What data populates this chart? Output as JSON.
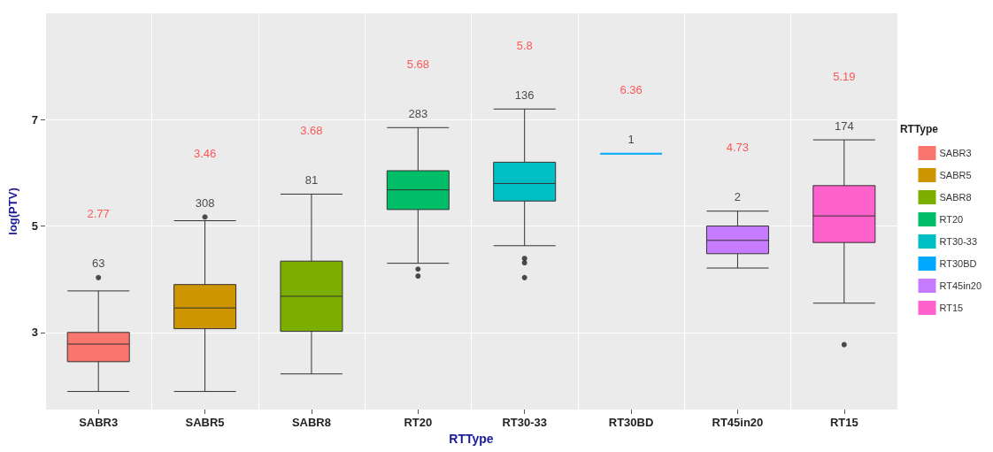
{
  "chart_data": {
    "type": "box",
    "xlabel": "RTType",
    "ylabel": "log(PTV)",
    "legend_title": "RTType",
    "categories": [
      "SABR3",
      "SABR5",
      "SABR8",
      "RT20",
      "RT30-33",
      "RT30BD",
      "RT45in20",
      "RT15"
    ],
    "series": [
      {
        "name": "SABR3",
        "color": "#f8766d",
        "boxes": [
          {
            "low": 1.89,
            "q1": 2.45,
            "median": 2.78,
            "q3": 3.0,
            "high": 3.78,
            "outliers": [
              4.03
            ]
          },
          null,
          null,
          null,
          null,
          null,
          null,
          null
        ]
      },
      {
        "name": "SABR5",
        "color": "#cd9600",
        "boxes": [
          null,
          {
            "low": 1.89,
            "q1": 3.07,
            "median": 3.46,
            "q3": 3.9,
            "high": 5.1,
            "outliers": [
              5.17
            ]
          },
          null,
          null,
          null,
          null,
          null,
          null
        ]
      },
      {
        "name": "SABR8",
        "color": "#7cae00",
        "boxes": [
          null,
          null,
          {
            "low": 2.22,
            "q1": 3.02,
            "median": 3.68,
            "q3": 4.34,
            "high": 5.6
          },
          null,
          null,
          null,
          null,
          null
        ]
      },
      {
        "name": "RT20",
        "color": "#00be67",
        "boxes": [
          null,
          null,
          null,
          {
            "low": 4.3,
            "q1": 5.31,
            "median": 5.68,
            "q3": 6.04,
            "high": 6.85,
            "outliers": [
              4.19,
              4.06
            ]
          },
          null,
          null,
          null,
          null
        ]
      },
      {
        "name": "RT30-33",
        "color": "#00bfc4",
        "boxes": [
          null,
          null,
          null,
          null,
          {
            "low": 4.63,
            "q1": 5.47,
            "median": 5.8,
            "q3": 6.2,
            "high": 7.2,
            "outliers": [
              4.39,
              4.31,
              4.03
            ]
          },
          null,
          null,
          null
        ]
      },
      {
        "name": "RT30BD",
        "color": "#00a9ff",
        "boxes": [
          null,
          null,
          null,
          null,
          null,
          {
            "low": 6.36,
            "q1": 6.36,
            "median": 6.36,
            "q3": 6.36,
            "high": 6.36
          },
          null,
          null
        ]
      },
      {
        "name": "RT45in20",
        "color": "#c77cff",
        "boxes": [
          null,
          null,
          null,
          null,
          null,
          null,
          {
            "low": 4.21,
            "q1": 4.48,
            "median": 4.73,
            "q3": 5.0,
            "high": 5.28
          },
          null
        ]
      },
      {
        "name": "RT15",
        "color": "#ff61cc",
        "boxes": [
          null,
          null,
          null,
          null,
          null,
          null,
          null,
          {
            "low": 3.55,
            "q1": 4.69,
            "median": 5.19,
            "q3": 5.76,
            "high": 6.62,
            "outliers": [
              2.77
            ]
          }
        ]
      }
    ],
    "value_labels": [
      "2.77",
      "3.46",
      "3.68",
      "5.68",
      "5.8",
      "6.36",
      "4.73",
      "5.19"
    ],
    "annotations": [
      "63",
      "308",
      "81",
      "283",
      "136",
      "1",
      "2",
      "174"
    ],
    "ylim": [
      1.55,
      9
    ],
    "yticks": [
      3,
      5,
      7
    ],
    "grid": true,
    "legend": "right"
  }
}
